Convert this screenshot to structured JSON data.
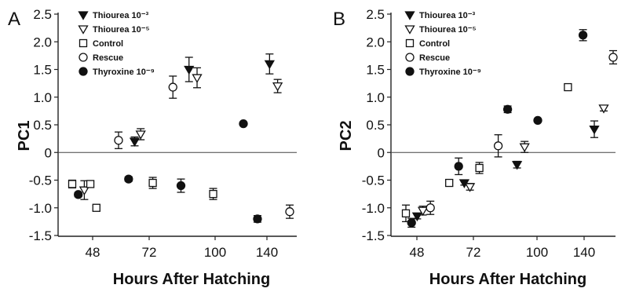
{
  "legend_entries": [
    {
      "label": "Thiourea 10⁻³",
      "marker": "filled-down-triangle"
    },
    {
      "label": "Thiourea 10⁻⁵",
      "marker": "open-down-triangle"
    },
    {
      "label": "Control",
      "marker": "open-square"
    },
    {
      "label": "Rescue",
      "marker": "open-circle"
    },
    {
      "label": "Thyroxine 10⁻⁹",
      "marker": "filled-circle"
    }
  ],
  "chart_data": [
    {
      "type": "scatter",
      "panel": "A",
      "xlabel": "Hours After Hatching",
      "ylabel": "PC1",
      "xticks": [
        "48",
        "72",
        "100",
        "140"
      ],
      "yticks": [
        "2.5",
        "2.0",
        "1.5",
        "1.0",
        "0.5",
        "0",
        "-0.5",
        "-1.0",
        "-1.5"
      ],
      "ylim": [
        -1.5,
        2.5
      ],
      "zero_line": true,
      "points": [
        {
          "x": 42,
          "y": -0.57,
          "err": 0.07,
          "marker": "open-square"
        },
        {
          "x": 45,
          "y": -0.76,
          "err": 0.04,
          "marker": "filled-circle"
        },
        {
          "x": 48,
          "y": -0.68,
          "err": 0.17,
          "marker": "open-down-triangle"
        },
        {
          "x": 51,
          "y": -0.57,
          "err": 0.06,
          "marker": "open-square"
        },
        {
          "x": 54,
          "y": -1.0,
          "err": 0.05,
          "marker": "open-square"
        },
        {
          "x": 65,
          "y": 0.22,
          "err": 0.15,
          "marker": "open-circle"
        },
        {
          "x": 70,
          "y": -0.48,
          "err": 0.04,
          "marker": "filled-circle"
        },
        {
          "x": 73,
          "y": 0.2,
          "err": 0.08,
          "marker": "filled-down-triangle"
        },
        {
          "x": 76,
          "y": 0.33,
          "err": 0.1,
          "marker": "open-down-triangle"
        },
        {
          "x": 82,
          "y": -0.55,
          "err": 0.1,
          "marker": "open-square"
        },
        {
          "x": 92,
          "y": 1.18,
          "err": 0.2,
          "marker": "open-circle"
        },
        {
          "x": 96,
          "y": -0.6,
          "err": 0.12,
          "marker": "filled-circle"
        },
        {
          "x": 100,
          "y": 1.5,
          "err": 0.22,
          "marker": "filled-down-triangle"
        },
        {
          "x": 104,
          "y": 1.35,
          "err": 0.18,
          "marker": "open-down-triangle"
        },
        {
          "x": 112,
          "y": -0.75,
          "err": 0.1,
          "marker": "open-square"
        },
        {
          "x": 127,
          "y": 0.52,
          "err": 0.02,
          "marker": "filled-circle"
        },
        {
          "x": 134,
          "y": -1.2,
          "err": 0.06,
          "marker": "filled-circle"
        },
        {
          "x": 140,
          "y": 1.6,
          "err": 0.18,
          "marker": "filled-down-triangle"
        },
        {
          "x": 144,
          "y": 1.2,
          "err": 0.12,
          "marker": "open-down-triangle"
        },
        {
          "x": 150,
          "y": -1.07,
          "err": 0.12,
          "marker": "open-circle"
        }
      ]
    },
    {
      "type": "scatter",
      "panel": "B",
      "xlabel": "Hours After Hatching",
      "ylabel": "PC2",
      "xticks": [
        "48",
        "72",
        "100",
        "140"
      ],
      "yticks": [
        "2.5",
        "2.0",
        "1.5",
        "1.0",
        "0.5",
        "0",
        "-0.5",
        "-1.0",
        "-1.5"
      ],
      "ylim": [
        -1.5,
        2.5
      ],
      "zero_line": true,
      "points": [
        {
          "x": 40,
          "y": -1.1,
          "err": 0.15,
          "marker": "open-square"
        },
        {
          "x": 43,
          "y": -1.27,
          "err": 0.08,
          "marker": "filled-circle"
        },
        {
          "x": 46,
          "y": -1.15,
          "err": 0.05,
          "marker": "filled-down-triangle"
        },
        {
          "x": 49,
          "y": -1.05,
          "err": 0.08,
          "marker": "open-down-triangle"
        },
        {
          "x": 53,
          "y": -1.0,
          "err": 0.12,
          "marker": "open-circle"
        },
        {
          "x": 63,
          "y": -0.55,
          "err": 0.06,
          "marker": "open-square"
        },
        {
          "x": 68,
          "y": -0.25,
          "err": 0.15,
          "marker": "filled-circle"
        },
        {
          "x": 71,
          "y": -0.55,
          "err": 0.04,
          "marker": "filled-down-triangle"
        },
        {
          "x": 74,
          "y": -0.62,
          "err": 0.06,
          "marker": "open-down-triangle"
        },
        {
          "x": 79,
          "y": -0.28,
          "err": 0.1,
          "marker": "open-square"
        },
        {
          "x": 89,
          "y": 0.12,
          "err": 0.2,
          "marker": "open-circle"
        },
        {
          "x": 94,
          "y": 0.78,
          "err": 0.06,
          "marker": "filled-circle"
        },
        {
          "x": 99,
          "y": -0.22,
          "err": 0.06,
          "marker": "filled-down-triangle"
        },
        {
          "x": 103,
          "y": 0.1,
          "err": 0.1,
          "marker": "open-down-triangle"
        },
        {
          "x": 110,
          "y": 0.58,
          "err": 0.02,
          "marker": "filled-circle"
        },
        {
          "x": 126,
          "y": 1.18,
          "err": 0.04,
          "marker": "open-square"
        },
        {
          "x": 134,
          "y": 2.12,
          "err": 0.1,
          "marker": "filled-circle"
        },
        {
          "x": 140,
          "y": 0.42,
          "err": 0.15,
          "marker": "filled-down-triangle"
        },
        {
          "x": 145,
          "y": 0.8,
          "err": 0.05,
          "marker": "open-down-triangle"
        },
        {
          "x": 150,
          "y": 1.72,
          "err": 0.12,
          "marker": "open-circle"
        }
      ]
    }
  ]
}
